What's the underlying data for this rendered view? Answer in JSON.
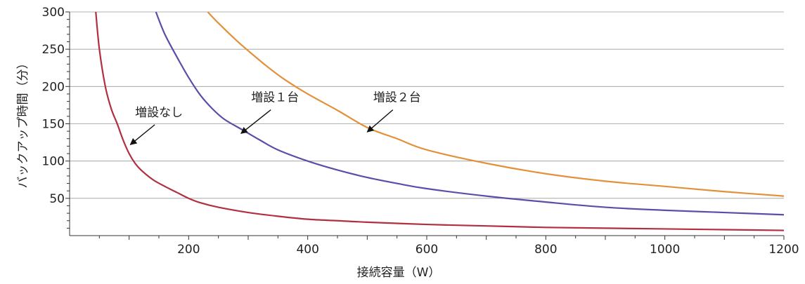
{
  "chart_data": {
    "type": "line",
    "xlabel": "接続容量（W）",
    "ylabel": "バックアップ時間（分）",
    "xlim": [
      0,
      1200
    ],
    "ylim": [
      0,
      300
    ],
    "x_ticks": [
      200,
      400,
      600,
      800,
      1000,
      1200
    ],
    "y_ticks": [
      50,
      100,
      150,
      200,
      250,
      300
    ],
    "grid": "horizontal",
    "series": [
      {
        "name": "増設なし",
        "color": "#b03040",
        "points": [
          [
            44,
            300
          ],
          [
            50,
            250
          ],
          [
            60,
            200
          ],
          [
            70,
            170
          ],
          [
            80,
            150
          ],
          [
            90,
            128
          ],
          [
            100,
            110
          ],
          [
            110,
            97
          ],
          [
            120,
            88
          ],
          [
            140,
            75
          ],
          [
            160,
            66
          ],
          [
            180,
            58
          ],
          [
            200,
            50
          ],
          [
            220,
            44
          ],
          [
            250,
            38
          ],
          [
            300,
            31
          ],
          [
            350,
            26
          ],
          [
            400,
            22
          ],
          [
            450,
            20
          ],
          [
            500,
            18
          ],
          [
            600,
            15
          ],
          [
            700,
            13
          ],
          [
            800,
            11
          ],
          [
            900,
            10
          ],
          [
            1000,
            9
          ],
          [
            1100,
            8
          ],
          [
            1200,
            7
          ]
        ]
      },
      {
        "name": "増設１台",
        "color": "#5a4fa8",
        "points": [
          [
            145,
            300
          ],
          [
            160,
            270
          ],
          [
            180,
            240
          ],
          [
            200,
            212
          ],
          [
            220,
            188
          ],
          [
            240,
            170
          ],
          [
            260,
            156
          ],
          [
            290,
            142
          ],
          [
            320,
            128
          ],
          [
            350,
            115
          ],
          [
            400,
            100
          ],
          [
            450,
            88
          ],
          [
            500,
            78
          ],
          [
            550,
            70
          ],
          [
            600,
            63
          ],
          [
            700,
            53
          ],
          [
            800,
            45
          ],
          [
            900,
            38
          ],
          [
            1000,
            34
          ],
          [
            1100,
            31
          ],
          [
            1200,
            28
          ]
        ]
      },
      {
        "name": "増設２台",
        "color": "#e2913a",
        "points": [
          [
            232,
            300
          ],
          [
            250,
            285
          ],
          [
            280,
            262
          ],
          [
            300,
            248
          ],
          [
            330,
            228
          ],
          [
            360,
            210
          ],
          [
            400,
            190
          ],
          [
            450,
            168
          ],
          [
            500,
            145
          ],
          [
            550,
            130
          ],
          [
            600,
            115
          ],
          [
            700,
            97
          ],
          [
            800,
            83
          ],
          [
            900,
            73
          ],
          [
            1000,
            66
          ],
          [
            1100,
            59
          ],
          [
            1200,
            53
          ]
        ]
      }
    ],
    "annotations": [
      {
        "text": "増設なし",
        "series": 0,
        "at": [
          110,
          160
        ],
        "arrow_to": [
          102,
          122
        ]
      },
      {
        "text": "増設１台",
        "series": 1,
        "at": [
          305,
          180
        ],
        "arrow_to": [
          288,
          137
        ]
      },
      {
        "text": "増設２台",
        "series": 2,
        "at": [
          510,
          180
        ],
        "arrow_to": [
          500,
          139
        ]
      }
    ]
  }
}
